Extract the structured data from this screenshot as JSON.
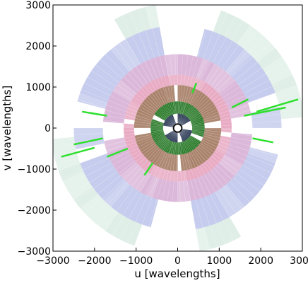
{
  "chart_data": {
    "type": "scatter",
    "title": "",
    "xlabel": "u [wavelengths]",
    "ylabel": "v [wavelengths]",
    "xlim": [
      -3000,
      3000
    ],
    "ylim": [
      -3000,
      3000
    ],
    "xticks": [
      -3000,
      -2000,
      -1000,
      0,
      1000,
      2000,
      3000
    ],
    "yticks": [
      -3000,
      -2000,
      -1000,
      0,
      1000,
      2000,
      3000
    ],
    "xtick_labels": [
      "−3000",
      "−2000",
      "−1000",
      "0",
      "1000",
      "2000",
      "3000"
    ],
    "ytick_labels": [
      "−3000",
      "−2000",
      "−1000",
      "0",
      "1000",
      "2000",
      "3000"
    ],
    "grid": false,
    "legend": "none",
    "series": [
      {
        "color": "#dbece4",
        "rmin": 2500,
        "rmax": 3050,
        "opacity": 0.7,
        "segments": [
          [
            185,
            205
          ],
          [
            215,
            250
          ],
          [
            20,
            40
          ],
          [
            55,
            70
          ],
          [
            285,
            300
          ],
          [
            100,
            120
          ]
        ]
      },
      {
        "color": "#c3c9ec",
        "rmin": 1800,
        "rmax": 2500,
        "opacity": 0.8,
        "segments": [
          [
            100,
            165
          ],
          [
            200,
            255
          ],
          [
            280,
            300
          ],
          [
            20,
            45
          ],
          [
            50,
            75
          ],
          [
            310,
            340
          ],
          [
            0,
            12
          ]
        ]
      },
      {
        "color": "#d9b4d8",
        "rmin": 1300,
        "rmax": 1800,
        "opacity": 0.8,
        "segments": [
          [
            60,
            175
          ],
          [
            200,
            245
          ],
          [
            250,
            270
          ],
          [
            330,
            355
          ],
          [
            10,
            40
          ],
          [
            280,
            320
          ]
        ]
      },
      {
        "color": "#e8a9c2",
        "rmin": 1050,
        "rmax": 1300,
        "opacity": 0.85,
        "segments": [
          [
            70,
            170
          ],
          [
            180,
            250
          ],
          [
            280,
            330
          ],
          [
            355,
            60
          ]
        ]
      },
      {
        "color": "#a9826a",
        "rmin": 650,
        "rmax": 1050,
        "opacity": 0.95,
        "segments": [
          [
            95,
            180
          ],
          [
            200,
            270
          ],
          [
            290,
            340
          ],
          [
            10,
            60
          ]
        ]
      },
      {
        "color": "#2b7a2b",
        "rmin": 350,
        "rmax": 650,
        "opacity": 0.95,
        "segments": [
          [
            60,
            150
          ],
          [
            190,
            250
          ],
          [
            280,
            330
          ],
          [
            340,
            30
          ]
        ]
      },
      {
        "color": "#1c2b4a",
        "rmin": 120,
        "rmax": 350,
        "opacity": 0.95,
        "segments": [
          [
            30,
            90
          ],
          [
            110,
            170
          ],
          [
            210,
            270
          ],
          [
            290,
            350
          ]
        ]
      }
    ],
    "green_lines": [
      [
        [
          -2300,
          400
        ],
        [
          -1700,
          300
        ]
      ],
      [
        [
          -2500,
          -400
        ],
        [
          -1800,
          -250
        ]
      ],
      [
        [
          -2800,
          -700
        ],
        [
          -2000,
          -480
        ]
      ],
      [
        [
          -1700,
          -700
        ],
        [
          -1200,
          -500
        ]
      ],
      [
        [
          1600,
          300
        ],
        [
          2600,
          500
        ]
      ],
      [
        [
          1900,
          400
        ],
        [
          2900,
          700
        ]
      ],
      [
        [
          1700,
          700
        ],
        [
          1300,
          500
        ]
      ],
      [
        [
          1800,
          -250
        ],
        [
          2300,
          -350
        ]
      ],
      [
        [
          -800,
          -1150
        ],
        [
          -600,
          -850
        ]
      ],
      [
        [
          350,
          850
        ],
        [
          450,
          1100
        ]
      ]
    ]
  }
}
